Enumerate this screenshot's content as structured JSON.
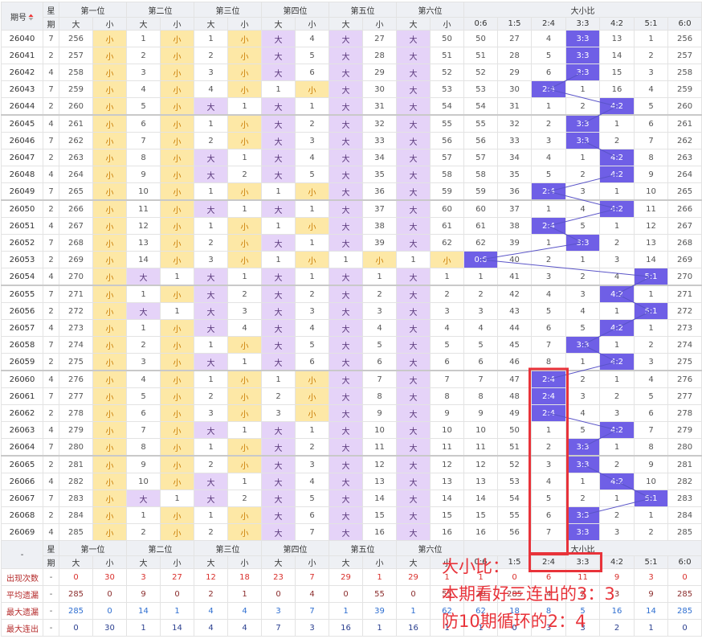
{
  "header": {
    "period": "期号",
    "weekday_top": "星",
    "weekday_bottom": "期",
    "positions": [
      "第一位",
      "第二位",
      "第三位",
      "第四位",
      "第五位",
      "第六位"
    ],
    "big": "大",
    "small": "小",
    "ratio_title": "大小比",
    "ratio_cols": [
      "0:6",
      "1:5",
      "2:4",
      "3:3",
      "4:2",
      "5:1",
      "6:0"
    ],
    "footer_period": "-"
  },
  "rows": [
    {
      "period": "26040",
      "weekday": 7,
      "cells": [
        256,
        "小",
        1,
        "小",
        1,
        "小",
        "大",
        4,
        "大",
        27,
        "大",
        50
      ],
      "ratio": [
        50,
        27,
        4,
        "3:3",
        13,
        1,
        256
      ]
    },
    {
      "period": "26041",
      "weekday": 2,
      "cells": [
        257,
        "小",
        2,
        "小",
        2,
        "小",
        "大",
        5,
        "大",
        28,
        "大",
        51
      ],
      "ratio": [
        51,
        28,
        5,
        "3:3",
        14,
        2,
        257
      ]
    },
    {
      "period": "26042",
      "weekday": 4,
      "cells": [
        258,
        "小",
        3,
        "小",
        3,
        "小",
        "大",
        6,
        "大",
        29,
        "大",
        52
      ],
      "ratio": [
        52,
        29,
        6,
        "3:3",
        15,
        3,
        258
      ]
    },
    {
      "period": "26043",
      "weekday": 7,
      "cells": [
        259,
        "小",
        4,
        "小",
        4,
        "小",
        1,
        "小",
        "大",
        30,
        "大",
        53
      ],
      "ratio": [
        53,
        30,
        "2:4",
        1,
        16,
        4,
        259
      ]
    },
    {
      "period": "26044",
      "weekday": 2,
      "cells": [
        260,
        "小",
        5,
        "小",
        "大",
        1,
        "大",
        1,
        "大",
        31,
        "大",
        54
      ],
      "ratio": [
        54,
        31,
        1,
        2,
        "4:2",
        5,
        260
      ]
    },
    {
      "period": "26045",
      "weekday": 4,
      "cells": [
        261,
        "小",
        6,
        "小",
        1,
        "小",
        "大",
        2,
        "大",
        32,
        "大",
        55
      ],
      "ratio": [
        55,
        32,
        2,
        "3:3",
        1,
        6,
        261
      ]
    },
    {
      "period": "26046",
      "weekday": 7,
      "cells": [
        262,
        "小",
        7,
        "小",
        2,
        "小",
        "大",
        3,
        "大",
        33,
        "大",
        56
      ],
      "ratio": [
        56,
        33,
        3,
        "3:3",
        2,
        7,
        262
      ]
    },
    {
      "period": "26047",
      "weekday": 2,
      "cells": [
        263,
        "小",
        8,
        "小",
        "大",
        1,
        "大",
        4,
        "大",
        34,
        "大",
        57
      ],
      "ratio": [
        57,
        34,
        4,
        1,
        "4:2",
        8,
        263
      ]
    },
    {
      "period": "26048",
      "weekday": 4,
      "cells": [
        264,
        "小",
        9,
        "小",
        "大",
        2,
        "大",
        5,
        "大",
        35,
        "大",
        58
      ],
      "ratio": [
        58,
        35,
        5,
        2,
        "4:2",
        9,
        264
      ]
    },
    {
      "period": "26049",
      "weekday": 7,
      "cells": [
        265,
        "小",
        10,
        "小",
        1,
        "小",
        1,
        "小",
        "大",
        36,
        "大",
        59
      ],
      "ratio": [
        59,
        36,
        "2:4",
        3,
        1,
        10,
        265
      ]
    },
    {
      "period": "26050",
      "weekday": 2,
      "cells": [
        266,
        "小",
        11,
        "小",
        "大",
        1,
        "大",
        1,
        "大",
        37,
        "大",
        60
      ],
      "ratio": [
        60,
        37,
        1,
        4,
        "4:2",
        11,
        266
      ]
    },
    {
      "period": "26051",
      "weekday": 4,
      "cells": [
        267,
        "小",
        12,
        "小",
        1,
        "小",
        1,
        "小",
        "大",
        38,
        "大",
        61
      ],
      "ratio": [
        61,
        38,
        "2:4",
        5,
        1,
        12,
        267
      ]
    },
    {
      "period": "26052",
      "weekday": 7,
      "cells": [
        268,
        "小",
        13,
        "小",
        2,
        "小",
        "大",
        1,
        "大",
        39,
        "大",
        62
      ],
      "ratio": [
        62,
        39,
        1,
        "3:3",
        2,
        13,
        268
      ]
    },
    {
      "period": "26053",
      "weekday": 2,
      "cells": [
        269,
        "小",
        14,
        "小",
        3,
        "小",
        1,
        "小",
        1,
        "小",
        1,
        "小"
      ],
      "ratio": [
        "0:6",
        40,
        2,
        1,
        3,
        14,
        269
      ]
    },
    {
      "period": "26054",
      "weekday": 4,
      "cells": [
        270,
        "小",
        "大",
        1,
        "大",
        1,
        "大",
        1,
        "大",
        1,
        "大",
        1
      ],
      "ratio": [
        1,
        41,
        3,
        2,
        4,
        "5:1",
        270
      ]
    },
    {
      "period": "26055",
      "weekday": 7,
      "cells": [
        271,
        "小",
        1,
        "小",
        "大",
        2,
        "大",
        2,
        "大",
        2,
        "大",
        2
      ],
      "ratio": [
        2,
        42,
        4,
        3,
        "4:2",
        1,
        271
      ]
    },
    {
      "period": "26056",
      "weekday": 2,
      "cells": [
        272,
        "小",
        "大",
        1,
        "大",
        3,
        "大",
        3,
        "大",
        3,
        "大",
        3
      ],
      "ratio": [
        3,
        43,
        5,
        4,
        1,
        "5:1",
        272
      ]
    },
    {
      "period": "26057",
      "weekday": 4,
      "cells": [
        273,
        "小",
        1,
        "小",
        "大",
        4,
        "大",
        4,
        "大",
        4,
        "大",
        4
      ],
      "ratio": [
        4,
        44,
        6,
        5,
        "4:2",
        1,
        273
      ]
    },
    {
      "period": "26058",
      "weekday": 7,
      "cells": [
        274,
        "小",
        2,
        "小",
        1,
        "小",
        "大",
        5,
        "大",
        5,
        "大",
        5
      ],
      "ratio": [
        5,
        45,
        7,
        "3:3",
        1,
        2,
        274
      ]
    },
    {
      "period": "26059",
      "weekday": 2,
      "cells": [
        275,
        "小",
        3,
        "小",
        "大",
        1,
        "大",
        6,
        "大",
        6,
        "大",
        6
      ],
      "ratio": [
        6,
        46,
        8,
        1,
        "4:2",
        3,
        275
      ]
    },
    {
      "period": "26060",
      "weekday": 4,
      "cells": [
        276,
        "小",
        4,
        "小",
        1,
        "小",
        1,
        "小",
        "大",
        7,
        "大",
        7
      ],
      "ratio": [
        7,
        47,
        "2:4",
        2,
        1,
        4,
        276
      ]
    },
    {
      "period": "26061",
      "weekday": 7,
      "cells": [
        277,
        "小",
        5,
        "小",
        2,
        "小",
        2,
        "小",
        "大",
        8,
        "大",
        8
      ],
      "ratio": [
        8,
        48,
        "2:4",
        3,
        2,
        5,
        277
      ]
    },
    {
      "period": "26062",
      "weekday": 2,
      "cells": [
        278,
        "小",
        6,
        "小",
        3,
        "小",
        3,
        "小",
        "大",
        9,
        "大",
        9
      ],
      "ratio": [
        9,
        49,
        "2:4",
        4,
        3,
        6,
        278
      ]
    },
    {
      "period": "26063",
      "weekday": 4,
      "cells": [
        279,
        "小",
        7,
        "小",
        "大",
        1,
        "大",
        1,
        "大",
        10,
        "大",
        10
      ],
      "ratio": [
        10,
        50,
        1,
        5,
        "4:2",
        7,
        279
      ]
    },
    {
      "period": "26064",
      "weekday": 7,
      "cells": [
        280,
        "小",
        8,
        "小",
        1,
        "小",
        "大",
        2,
        "大",
        11,
        "大",
        11
      ],
      "ratio": [
        11,
        51,
        2,
        "3:3",
        1,
        8,
        280
      ]
    },
    {
      "period": "26065",
      "weekday": 2,
      "cells": [
        281,
        "小",
        9,
        "小",
        2,
        "小",
        "大",
        3,
        "大",
        12,
        "大",
        12
      ],
      "ratio": [
        12,
        52,
        3,
        "3:3",
        2,
        9,
        281
      ]
    },
    {
      "period": "26066",
      "weekday": 4,
      "cells": [
        282,
        "小",
        10,
        "小",
        "大",
        1,
        "大",
        4,
        "大",
        13,
        "大",
        13
      ],
      "ratio": [
        13,
        53,
        4,
        1,
        "4:2",
        10,
        282
      ]
    },
    {
      "period": "26067",
      "weekday": 7,
      "cells": [
        283,
        "小",
        "大",
        1,
        "大",
        2,
        "大",
        5,
        "大",
        14,
        "大",
        14
      ],
      "ratio": [
        14,
        54,
        5,
        2,
        1,
        "5:1",
        283
      ]
    },
    {
      "period": "26068",
      "weekday": 2,
      "cells": [
        284,
        "小",
        1,
        "小",
        1,
        "小",
        "大",
        6,
        "大",
        15,
        "大",
        15
      ],
      "ratio": [
        15,
        55,
        6,
        "3:3",
        2,
        1,
        284
      ]
    },
    {
      "period": "26069",
      "weekday": 4,
      "cells": [
        285,
        "小",
        2,
        "小",
        2,
        "小",
        "大",
        7,
        "大",
        16,
        "大",
        16
      ],
      "ratio": [
        16,
        56,
        7,
        "3:3",
        3,
        2,
        285
      ]
    }
  ],
  "stats": [
    {
      "label": "出现次数",
      "weekday": "-",
      "cells": [
        0,
        30,
        3,
        27,
        12,
        18,
        23,
        7,
        29,
        1,
        29,
        1
      ],
      "ratio": [
        1,
        0,
        6,
        11,
        9,
        3,
        0
      ]
    },
    {
      "label": "平均遗漏",
      "weekday": "-",
      "cells": [
        285,
        0,
        9,
        0,
        2,
        1,
        0,
        4,
        0,
        55,
        0,
        55
      ],
      "ratio": [
        28,
        285,
        4,
        2,
        3,
        9,
        285
      ]
    },
    {
      "label": "最大遗漏",
      "weekday": "-",
      "cells": [
        285,
        0,
        14,
        1,
        4,
        4,
        3,
        7,
        1,
        39,
        1,
        62
      ],
      "ratio": [
        62,
        18,
        8,
        5,
        16,
        14,
        285
      ]
    },
    {
      "label": "最大连出",
      "weekday": "-",
      "cells": [
        0,
        30,
        1,
        14,
        4,
        4,
        7,
        3,
        16,
        1,
        16,
        1
      ],
      "ratio": [
        1,
        0,
        3,
        3,
        2,
        1,
        0
      ]
    }
  ],
  "annotation": {
    "lines": [
      "大小比：",
      "本期看好三连出的3：3",
      "防10期循环的2：4"
    ]
  }
}
